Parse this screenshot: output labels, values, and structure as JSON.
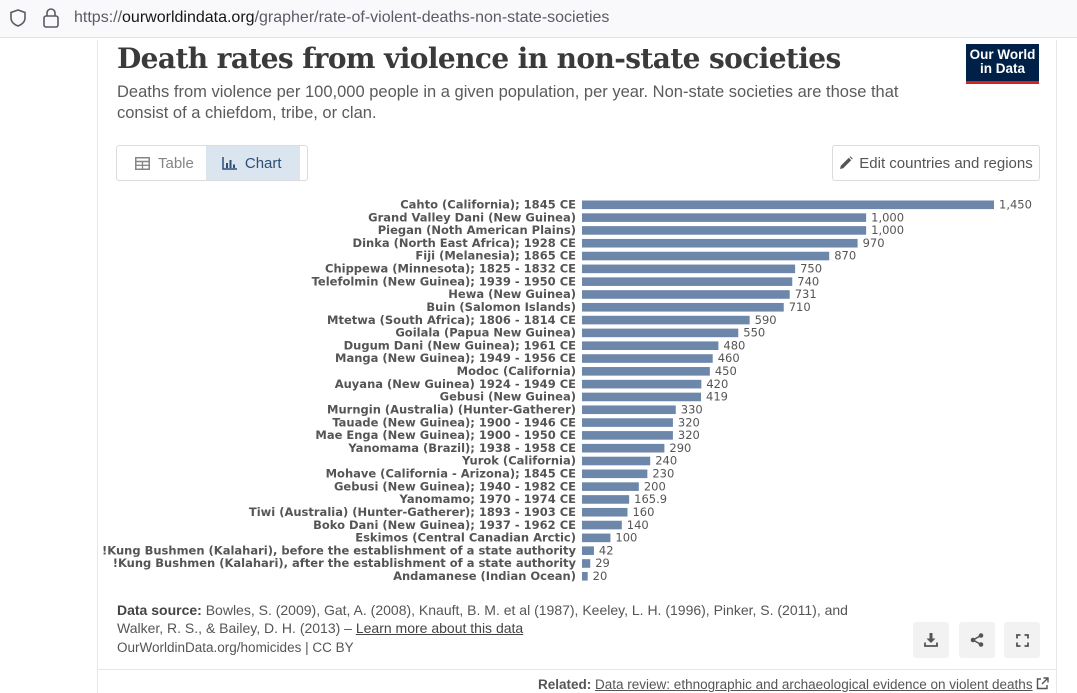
{
  "browser": {
    "url_prefix": "https://",
    "url_host": "ourworldindata.org",
    "url_path": "/grapher/rate-of-violent-deaths-non-state-societies"
  },
  "logo": {
    "line1": "Our World",
    "line2": "in Data",
    "bg": "#002147",
    "accent": "#ce261e"
  },
  "tabs": [
    {
      "label": "Table",
      "icon": "table-icon",
      "active": false
    },
    {
      "label": "Chart",
      "icon": "bar-chart-icon",
      "active": true
    }
  ],
  "edit_button": {
    "label": "Edit countries and regions",
    "icon": "pencil-icon"
  },
  "footer": {
    "source_label": "Data source:",
    "source_text": "Bowles, S. (2009), Gat, A. (2008), Knauft, B. M. et al (1987), Keeley, L. H. (1996), Pinker, S. (2011), and Walker, R. S., & Bailey, D. H. (2013) –",
    "learn_more": "Learn more about this data",
    "attribution": "OurWorldinData.org/homicides | CC BY",
    "related_label": "Related:",
    "related_link": "Data review: ethnographic and archaeological evidence on violent deaths"
  },
  "chart_data": {
    "type": "bar",
    "orientation": "horizontal",
    "title": "Death rates from violence in non-state societies",
    "subtitle": "Deaths from violence per 100,000 people in a given population, per year. Non-state societies are those that consist of a chiefdom, tribe, or clan.",
    "xlabel": "",
    "ylabel": "",
    "xlim": [
      0,
      1450
    ],
    "bar_color": "#6d87ab",
    "categories": [
      "Cahto (California); 1845 CE",
      "Grand Valley Dani (New Guinea)",
      "Piegan (Noth American Plains)",
      "Dinka (North East Africa); 1928 CE",
      "Fiji (Melanesia); 1865 CE",
      "Chippewa (Minnesota); 1825 - 1832 CE",
      "Telefolmin (New Guinea); 1939 - 1950 CE",
      "Hewa (New Guinea)",
      "Buin (Salomon Islands)",
      "Mtetwa (South Africa); 1806 - 1814 CE",
      "Goilala (Papua New Guinea)",
      "Dugum Dani (New Guinea); 1961 CE",
      "Manga (New Guinea); 1949 - 1956 CE",
      "Modoc (California)",
      "Auyana (New Guinea) 1924 - 1949 CE",
      "Gebusi (New Guinea)",
      "Murngin (Australia) (Hunter-Gatherer)",
      "Tauade (New Guinea); 1900 - 1946 CE",
      "Mae Enga (New Guinea); 1900 - 1950 CE",
      "Yanomama (Brazil); 1938 - 1958 CE",
      "Yurok (California)",
      "Mohave (California - Arizona); 1845 CE",
      "Gebusi (New Guinea); 1940 - 1982 CE",
      "Yanomamo; 1970 - 1974 CE",
      "Tiwi (Australia) (Hunter-Gatherer); 1893 - 1903 CE",
      "Boko Dani (New Guinea); 1937 - 1962 CE",
      "Eskimos (Central Canadian Arctic)",
      "!Kung Bushmen (Kalahari), before the establishment of a state authority",
      "!Kung Bushmen (Kalahari), after the establishment of a state authority",
      "Andamanese (Indian Ocean)"
    ],
    "values": [
      1450,
      1000,
      1000,
      970,
      870,
      750,
      740,
      731,
      710,
      590,
      550,
      480,
      460,
      450,
      420,
      419,
      330,
      320,
      320,
      290,
      240,
      230,
      200,
      165.9,
      160,
      140,
      100,
      42,
      29,
      20
    ],
    "value_labels": [
      "1,450",
      "1,000",
      "1,000",
      "970",
      "870",
      "750",
      "740",
      "731",
      "710",
      "590",
      "550",
      "480",
      "460",
      "450",
      "420",
      "419",
      "330",
      "320",
      "320",
      "290",
      "240",
      "230",
      "200",
      "165.9",
      "160",
      "140",
      "100",
      "42",
      "29",
      "20"
    ]
  }
}
